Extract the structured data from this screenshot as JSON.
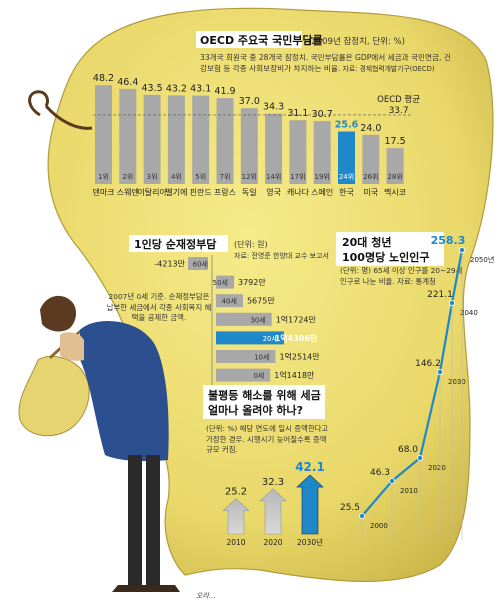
{
  "chart_data": [
    {
      "type": "bar",
      "title": "OECD 주요국 국민부담률",
      "subtitle": "(2009년 잠정치, 단위: %)",
      "description": "33개국 회원국 중 28개국 잠정치. 국민부담률은 GDP에서 세금과 국민연금, 건강보험 등 각종 사회보장비가 차지하는 비율.",
      "source": "자료: 경제협력개발기구(OECD)",
      "categories": [
        "덴마크",
        "스웨덴",
        "이탈리아",
        "벨기에",
        "핀란드",
        "프랑스",
        "독일",
        "영국",
        "캐나다",
        "스페인",
        "한국",
        "미국",
        "멕시코"
      ],
      "values": [
        48.2,
        46.4,
        43.5,
        43.2,
        43.1,
        41.9,
        37.0,
        34.3,
        31.1,
        30.7,
        25.6,
        24.0,
        17.5
      ],
      "value_labels": [
        "48.2",
        "46.4",
        "43.5",
        "43.2",
        "43.1",
        "41.9",
        "37.0",
        "34.3",
        "31.1",
        "30.7",
        "25.6",
        "24.0",
        "17.5"
      ],
      "ranks": [
        "1위",
        "2위",
        "3위",
        "4위",
        "5위",
        "7위",
        "12위",
        "14위",
        "17위",
        "19위",
        "24위",
        "26위",
        "28위"
      ],
      "highlight": "한국",
      "reference_line": {
        "label": "OECD 평균",
        "value": 33.7,
        "value_label": "33.7"
      },
      "colors": {
        "bar": "#a8a8a8",
        "highlight": "#1e88c8"
      }
    },
    {
      "type": "bar",
      "orientation": "horizontal",
      "title": "1인당 순재정부담",
      "subtitle": "(단위: 원)",
      "source": "자료: 전영준 한양대 교수 보고서",
      "note": "2007년 0세 기준. 순재정부담은 납부한 세금에서 각종 사회복지 혜택을 공제한 금액.",
      "categories": [
        "60세",
        "50세",
        "40세",
        "30세",
        "20세",
        "10세",
        "0세"
      ],
      "values_10k_won": [
        -4213,
        3792,
        5675,
        11724,
        14306,
        12514,
        11418
      ],
      "value_labels": [
        "-4213만",
        "3792만",
        "5675만",
        "1억1724만",
        "1억4306만",
        "1억2514만",
        "1억1418만"
      ],
      "highlight": "20세",
      "colors": {
        "bar": "#a8a8a8",
        "highlight": "#1e88c8"
      }
    },
    {
      "type": "bar",
      "title": "불평등 해소를 위해 세금 얼마나 올려야 하나?",
      "subtitle": "(단위: %) 해당 연도에 일시 증액한다고 가정한 경우. 시행시기 늦어질수록 증액규모 커짐.",
      "categories": [
        "2010",
        "2020",
        "2030년"
      ],
      "values": [
        25.2,
        32.3,
        42.1
      ],
      "value_labels": [
        "25.2",
        "32.3",
        "42.1"
      ],
      "highlight": "2030년",
      "colors": {
        "bar": "#a8a8a8",
        "highlight": "#1e88c8"
      }
    },
    {
      "type": "line",
      "title": "20대 청년 100명당 노인인구",
      "subtitle": "(단위: 명) 65세 이상 인구를 20~29세 인구로 나눈 비율.",
      "source": "자료: 통계청",
      "x": [
        "2000",
        "2010",
        "2020",
        "2030",
        "2040",
        "2050년"
      ],
      "y": [
        25.5,
        46.3,
        68.0,
        146.2,
        221.1,
        258.3
      ],
      "value_labels": [
        "25.5",
        "46.3",
        "68.0",
        "146.2",
        "221.1",
        "258.3"
      ],
      "colors": {
        "line": "#1e88c8"
      }
    }
  ],
  "signature": "오라..."
}
